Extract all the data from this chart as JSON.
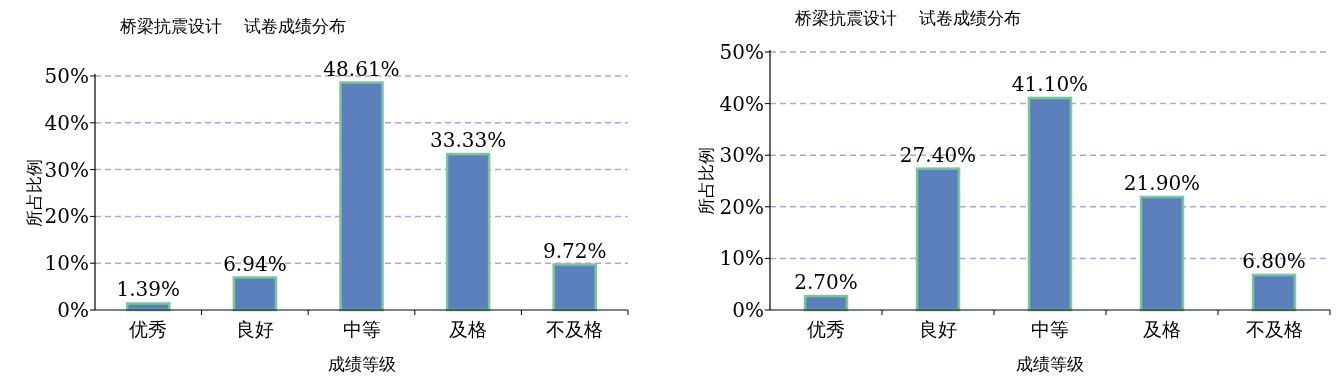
{
  "chart_data": [
    {
      "type": "bar",
      "title": "桥梁抗震设计    试卷成绩分布",
      "xlabel": "成绩等级",
      "ylabel": "所占比例",
      "categories": [
        "优秀",
        "良好",
        "中等",
        "及格",
        "不及格"
      ],
      "values": [
        1.39,
        6.94,
        48.61,
        33.33,
        9.72
      ],
      "value_labels": [
        "1.39%",
        "6.94%",
        "48.61%",
        "33.33%",
        "9.72%"
      ],
      "color": "#5b80bb",
      "ylim": [
        0,
        50
      ],
      "yticks": [
        {
          "value": 0,
          "label": "0%"
        },
        {
          "value": 10,
          "label": "10%"
        },
        {
          "value": 20,
          "label": "20%"
        },
        {
          "value": 30,
          "label": "30%"
        },
        {
          "value": 40,
          "label": "40%"
        },
        {
          "value": 50,
          "label": "50%"
        }
      ],
      "grid": "y"
    },
    {
      "type": "bar",
      "title": "桥梁抗震设计    试卷成绩分布",
      "xlabel": "成绩等级",
      "ylabel": "所占比例",
      "categories": [
        "优秀",
        "良好",
        "中等",
        "及格",
        "不及格"
      ],
      "values": [
        2.7,
        27.4,
        41.1,
        21.9,
        6.8
      ],
      "value_labels": [
        "2.70%",
        "27.40%",
        "41.10%",
        "21.90%",
        "6.80%"
      ],
      "color": "#5b80bb",
      "ylim": [
        0,
        50
      ],
      "yticks": [
        {
          "value": 0,
          "label": "0%"
        },
        {
          "value": 10,
          "label": "10%"
        },
        {
          "value": 20,
          "label": "20%"
        },
        {
          "value": 30,
          "label": "30%"
        },
        {
          "value": 40,
          "label": "40%"
        },
        {
          "value": 50,
          "label": "50%"
        }
      ],
      "grid": "y"
    }
  ]
}
